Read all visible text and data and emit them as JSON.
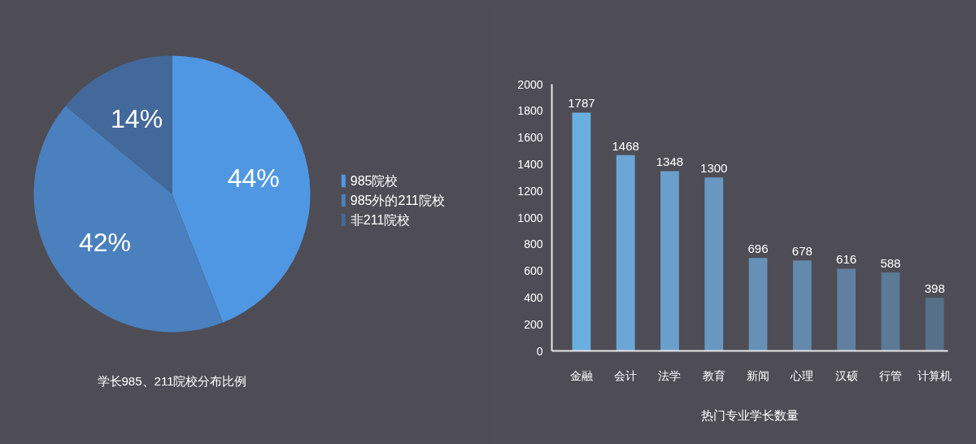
{
  "chart_data": [
    {
      "type": "pie",
      "title": "学长985、211院校分布比例",
      "categories": [
        "985院校",
        "985外的211院校",
        "非211院校"
      ],
      "values": [
        44,
        42,
        14
      ],
      "colors": [
        "#4f97e3",
        "#4a80bd",
        "#43699a"
      ],
      "value_labels": [
        "44%",
        "42%",
        "14%"
      ],
      "legend": "right"
    },
    {
      "type": "bar",
      "title": "热门专业学长数量",
      "categories": [
        "金融",
        "会计",
        "法学",
        "教育",
        "新闻",
        "心理",
        "汉硕",
        "行管",
        "计算机"
      ],
      "values": [
        1787,
        1468,
        1348,
        1300,
        696,
        678,
        616,
        588,
        398
      ],
      "colors": [
        "#6aaee0",
        "#6ba6d6",
        "#6a9fcc",
        "#6897c1",
        "#6690b5",
        "#6389ab",
        "#5f80a0",
        "#5c7996",
        "#57708a"
      ],
      "ylim": [
        0,
        2000
      ],
      "yticks": [
        0,
        200,
        400,
        600,
        800,
        1000,
        1200,
        1400,
        1600,
        1800,
        2000
      ],
      "data_labels": true
    }
  ]
}
